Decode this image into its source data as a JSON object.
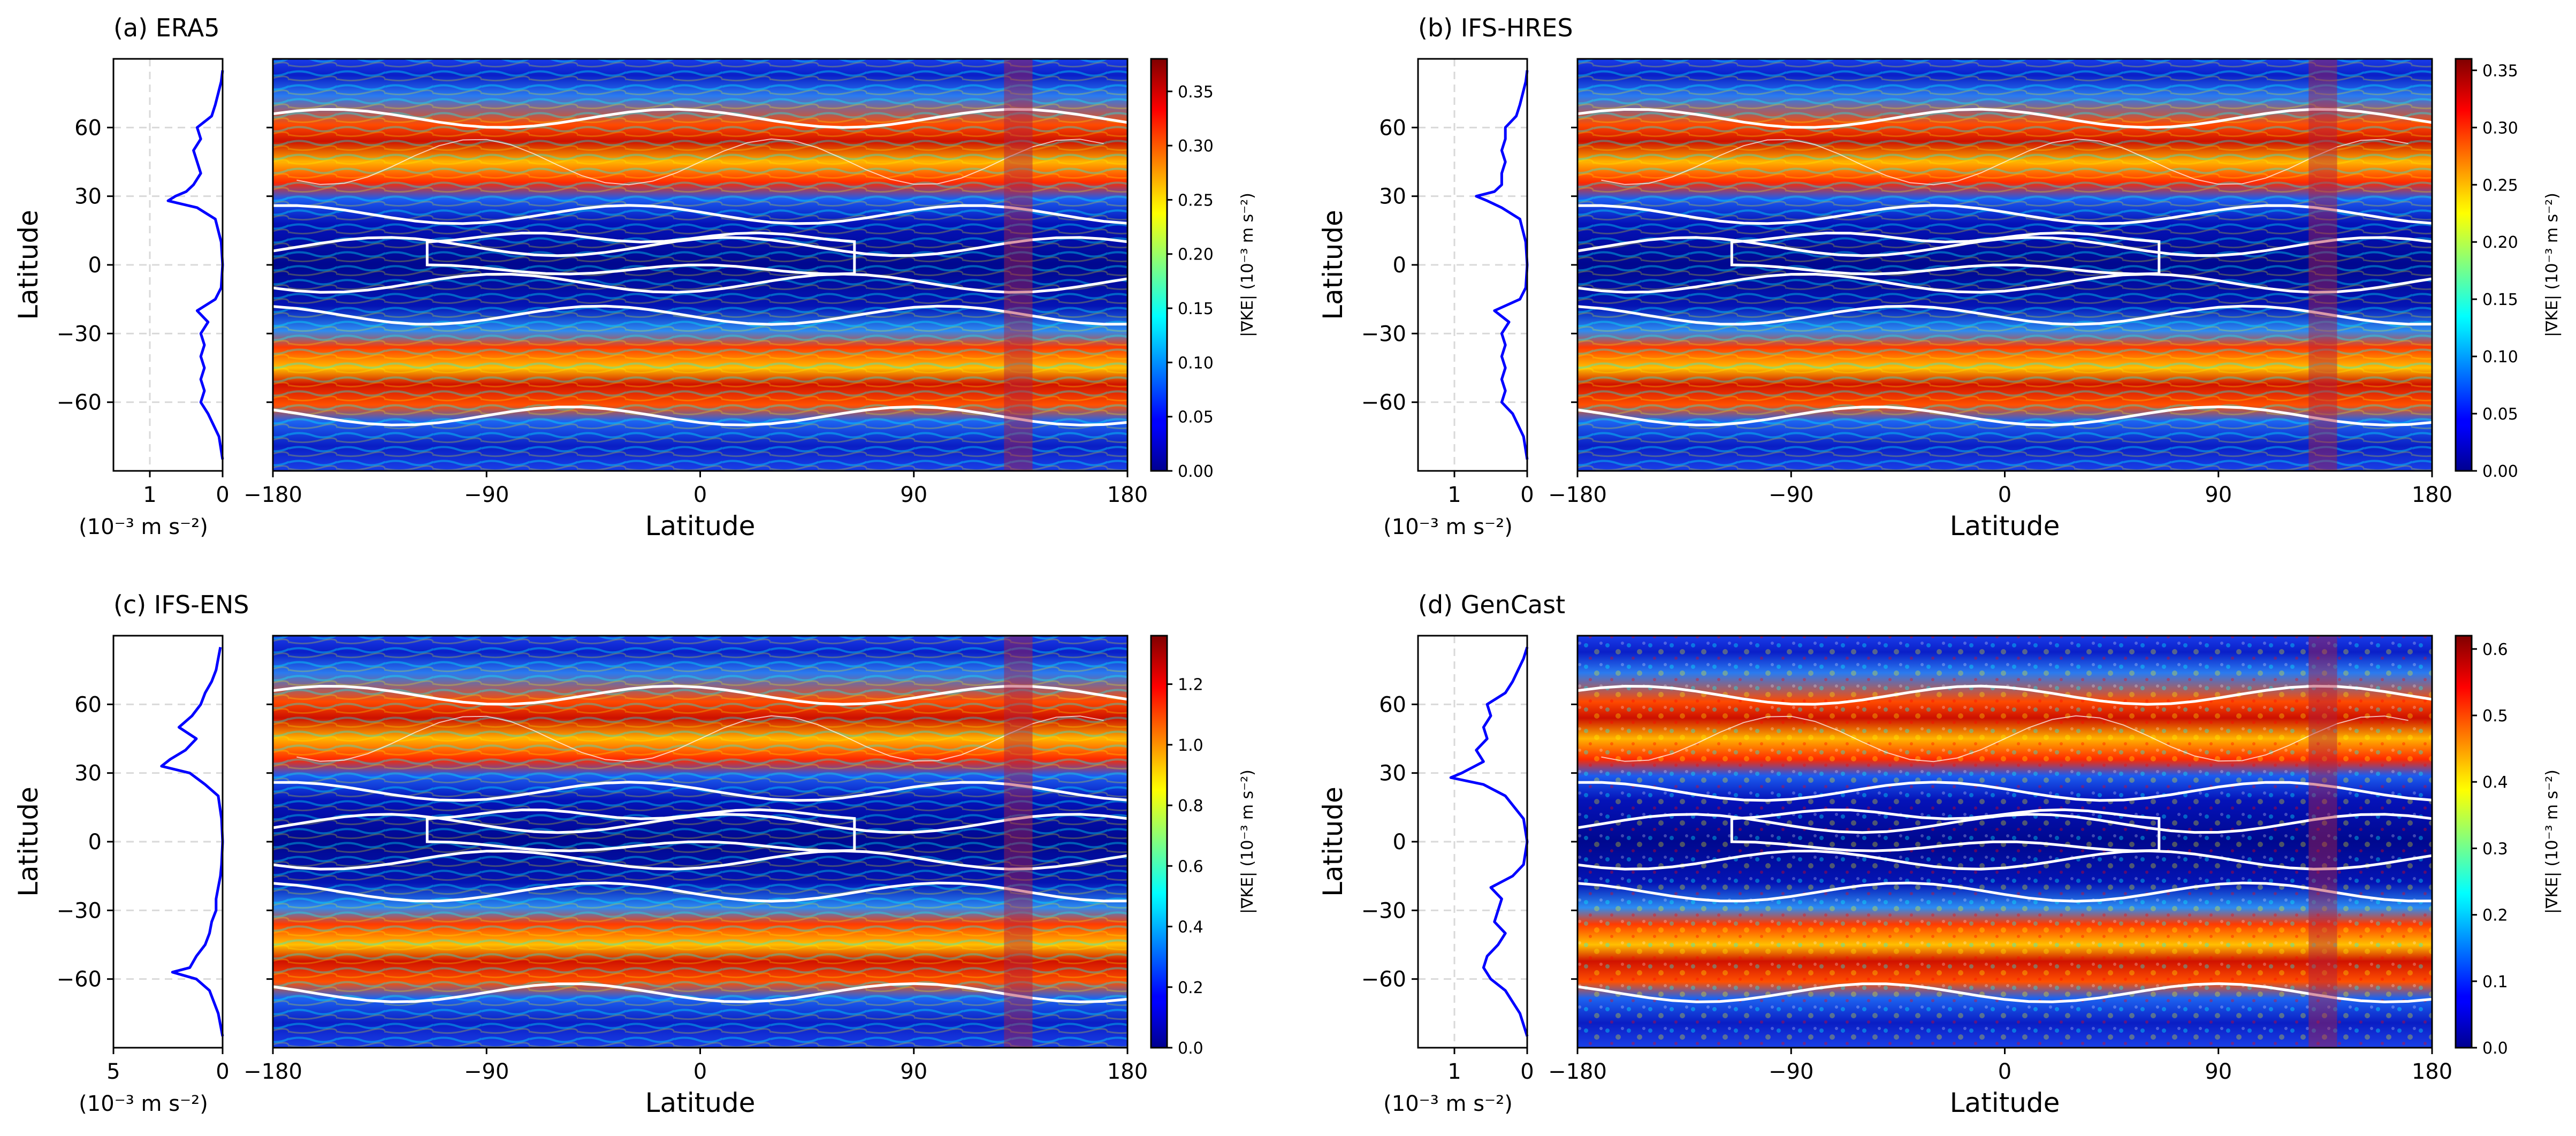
{
  "chart_data": [
    {
      "type": "heatmap",
      "title": "(a) ERA5",
      "xlabel": "Latitude",
      "ylabel": "Latitude",
      "xlim": [
        -180,
        180
      ],
      "ylim": [
        -90,
        90
      ],
      "xticks": [
        "−180",
        "−90",
        "0",
        "90",
        "180"
      ],
      "yticks": [
        "60",
        "30",
        "0",
        "−30",
        "−60"
      ],
      "colorbar": {
        "label": "|∇KE| (10⁻³ m s⁻²)",
        "range": [
          0,
          0.38
        ],
        "ticks": [
          "0.00",
          "0.05",
          "0.10",
          "0.15",
          "0.20",
          "0.25",
          "0.30",
          "0.35"
        ],
        "colormap": "jet"
      },
      "highlight_band_lon": [
        128,
        140
      ],
      "zonal_mean_profile": {
        "xlabel": "(10⁻³ m s⁻²)",
        "xticks": [
          "1",
          "0"
        ],
        "xlim": [
          1.5,
          0
        ],
        "lat": [
          -85,
          -75,
          -65,
          -60,
          -55,
          -50,
          -45,
          -40,
          -35,
          -30,
          -25,
          -20,
          -15,
          -10,
          0,
          10,
          20,
          25,
          28,
          30,
          32,
          35,
          40,
          45,
          50,
          55,
          60,
          65,
          70,
          80,
          85
        ],
        "values": [
          0.0,
          0.05,
          0.2,
          0.3,
          0.25,
          0.3,
          0.25,
          0.3,
          0.25,
          0.3,
          0.2,
          0.35,
          0.1,
          0.02,
          0.0,
          0.02,
          0.1,
          0.35,
          0.75,
          0.65,
          0.5,
          0.4,
          0.3,
          0.35,
          0.4,
          0.3,
          0.35,
          0.15,
          0.1,
          0.02,
          0.0
        ]
      }
    },
    {
      "type": "heatmap",
      "title": "(b) IFS-HRES",
      "xlabel": "Latitude",
      "ylabel": "Latitude",
      "xlim": [
        -180,
        180
      ],
      "ylim": [
        -90,
        90
      ],
      "xticks": [
        "−180",
        "−90",
        "0",
        "90",
        "180"
      ],
      "yticks": [
        "60",
        "30",
        "0",
        "−30",
        "−60"
      ],
      "colorbar": {
        "label": "|∇KE| (10⁻³ m s⁻²)",
        "range": [
          0,
          0.36
        ],
        "ticks": [
          "0.00",
          "0.05",
          "0.10",
          "0.15",
          "0.20",
          "0.25",
          "0.30",
          "0.35"
        ],
        "colormap": "jet"
      },
      "highlight_band_lon": [
        128,
        140
      ],
      "zonal_mean_profile": {
        "xlabel": "(10⁻³ m s⁻²)",
        "xticks": [
          "1",
          "0"
        ],
        "xlim": [
          1.5,
          0
        ],
        "lat": [
          -85,
          -75,
          -65,
          -60,
          -55,
          -50,
          -45,
          -40,
          -35,
          -30,
          -25,
          -20,
          -15,
          -10,
          0,
          10,
          20,
          25,
          28,
          30,
          32,
          35,
          40,
          45,
          50,
          55,
          60,
          65,
          70,
          80,
          85
        ],
        "values": [
          0.0,
          0.05,
          0.2,
          0.35,
          0.3,
          0.35,
          0.3,
          0.35,
          0.3,
          0.35,
          0.25,
          0.45,
          0.1,
          0.02,
          0.0,
          0.02,
          0.1,
          0.35,
          0.55,
          0.7,
          0.45,
          0.35,
          0.35,
          0.3,
          0.35,
          0.3,
          0.3,
          0.15,
          0.1,
          0.02,
          0.0
        ]
      }
    },
    {
      "type": "heatmap",
      "title": "(c) IFS-ENS",
      "xlabel": "Latitude",
      "ylabel": "Latitude",
      "xlim": [
        -180,
        180
      ],
      "ylim": [
        -90,
        90
      ],
      "xticks": [
        "−180",
        "−90",
        "0",
        "90",
        "180"
      ],
      "yticks": [
        "60",
        "30",
        "0",
        "−30",
        "−60"
      ],
      "colorbar": {
        "label": "|∇KE| (10⁻³ m s⁻²)",
        "range": [
          0,
          1.36
        ],
        "ticks": [
          "0.0",
          "0.2",
          "0.4",
          "0.6",
          "0.8",
          "1.0",
          "1.2"
        ],
        "colormap": "jet"
      },
      "highlight_band_lon": [
        128,
        140
      ],
      "zonal_mean_profile": {
        "xlabel": "(10⁻³ m s⁻²)",
        "xticks": [
          "5",
          "0"
        ],
        "xlim": [
          5,
          0
        ],
        "lat": [
          -85,
          -75,
          -65,
          -60,
          -57,
          -55,
          -50,
          -45,
          -40,
          -35,
          -30,
          -25,
          -20,
          -15,
          -10,
          0,
          10,
          20,
          25,
          30,
          33,
          36,
          40,
          45,
          50,
          55,
          60,
          65,
          70,
          75,
          80,
          85
        ],
        "values": [
          0.0,
          0.2,
          0.6,
          1.2,
          2.3,
          1.5,
          1.2,
          0.8,
          0.6,
          0.5,
          0.3,
          0.3,
          0.2,
          0.1,
          0.05,
          0.0,
          0.05,
          0.2,
          0.8,
          1.5,
          2.8,
          2.4,
          1.7,
          1.2,
          2.0,
          1.4,
          1.0,
          0.8,
          0.5,
          0.3,
          0.2,
          0.1
        ]
      }
    },
    {
      "type": "heatmap",
      "title": "(d) GenCast",
      "xlabel": "Latitude",
      "ylabel": "Latitude",
      "xlim": [
        -180,
        180
      ],
      "ylim": [
        -90,
        90
      ],
      "xticks": [
        "−180",
        "−90",
        "0",
        "90",
        "180"
      ],
      "yticks": [
        "60",
        "30",
        "0",
        "−30",
        "−60"
      ],
      "colorbar": {
        "label": "|∇KE| (10⁻³ m s⁻²)",
        "range": [
          0,
          0.62
        ],
        "ticks": [
          "0.0",
          "0.1",
          "0.2",
          "0.3",
          "0.4",
          "0.5",
          "0.6"
        ],
        "colormap": "jet"
      },
      "highlight_band_lon": [
        128,
        140
      ],
      "zonal_mean_profile": {
        "xlabel": "(10⁻³ m s⁻²)",
        "xticks": [
          "1",
          "0"
        ],
        "xlim": [
          1.5,
          0
        ],
        "lat": [
          -85,
          -75,
          -65,
          -60,
          -55,
          -50,
          -45,
          -40,
          -35,
          -30,
          -25,
          -20,
          -15,
          -10,
          0,
          10,
          20,
          25,
          28,
          30,
          35,
          40,
          45,
          50,
          55,
          60,
          65,
          70,
          80,
          85
        ],
        "values": [
          0.0,
          0.1,
          0.3,
          0.5,
          0.6,
          0.55,
          0.4,
          0.3,
          0.45,
          0.4,
          0.35,
          0.5,
          0.2,
          0.05,
          0.0,
          0.05,
          0.3,
          0.6,
          1.05,
          0.9,
          0.6,
          0.7,
          0.55,
          0.6,
          0.5,
          0.55,
          0.3,
          0.2,
          0.05,
          0.0
        ]
      }
    }
  ]
}
